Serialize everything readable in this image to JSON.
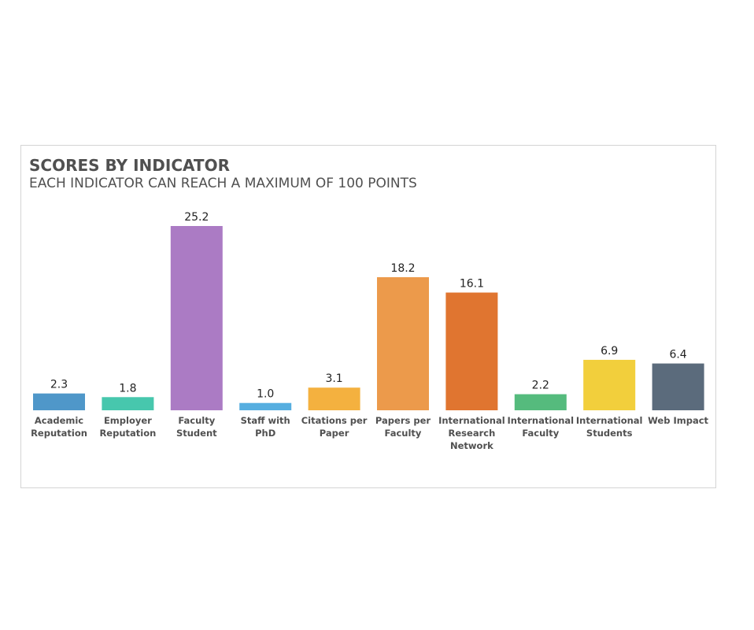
{
  "chart_data": {
    "type": "bar",
    "title": "SCORES BY INDICATOR",
    "subtitle": "EACH INDICATOR CAN REACH A MAXIMUM OF 100 POINTS",
    "categories": [
      "Academic Reputation",
      "Employer Reputation",
      "Faculty Student",
      "Staff with PhD",
      "Citations per Paper",
      "Papers per Faculty",
      "International Research Network",
      "International Faculty",
      "International Students",
      "Web Impact"
    ],
    "values": [
      2.3,
      1.8,
      25.2,
      1,
      3.1,
      18.2,
      16.1,
      2.2,
      6.9,
      6.4
    ],
    "value_labels": [
      "2.3",
      "1.8",
      "25.2",
      "1.0",
      "3.1",
      "18.2",
      "16.1",
      "2.2",
      "6.9",
      "6.4"
    ],
    "colors": [
      "#4f97c9",
      "#47c7ad",
      "#ab7bc4",
      "#56aee0",
      "#f4b13f",
      "#ec9a4b",
      "#e07530",
      "#55bb7d",
      "#f2cf3c",
      "#5b6b7c"
    ]
  }
}
